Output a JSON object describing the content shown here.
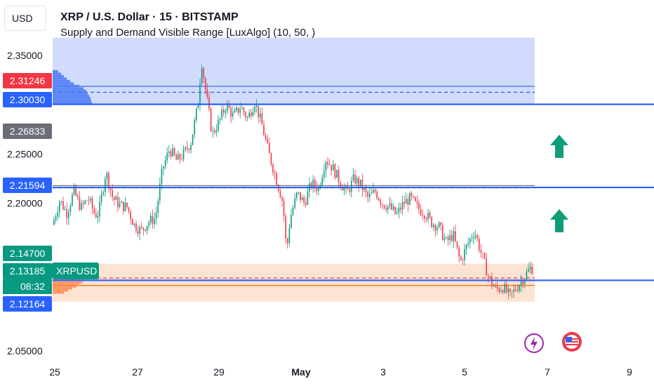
{
  "header": {
    "title": "XRP / U.S. Dollar · 15 · BITSTAMP",
    "subtitle": "Supply and Demand Visible Range [LuxAlgo] (10, 50, )"
  },
  "currency": "USD",
  "colors": {
    "supply_zone": "#c9d6fb",
    "supply_profile": "#4f7df5",
    "demand_zone": "#fde0cd",
    "demand_profile": "#ff8a4f",
    "level_line": "#2962ff",
    "up_candle": "#089981",
    "down_candle": "#f23645",
    "arrow": "#0f9d77",
    "badge_red": "#f23645",
    "badge_blue": "#2962ff",
    "badge_grey": "#6a6d78",
    "badge_teal": "#089981"
  },
  "chart_data": {
    "type": "candlestick",
    "y_range": [
      2.05,
      2.372
    ],
    "price_ticks": [
      "2.35000",
      "2.25000",
      "2.20000",
      "2.05000"
    ],
    "date_ticks": [
      "25",
      "27",
      "29",
      "May",
      "3",
      "5",
      "7",
      "9"
    ],
    "supply_zone": {
      "top": 2.368,
      "bottom": 2.3003,
      "average": 2.3186,
      "poi": 2.3125
    },
    "demand_zone": {
      "top": 2.1385,
      "bottom": 2.1,
      "average": 2.1165,
      "poi": 2.124
    },
    "equilibrium": {
      "top": 2.2178,
      "bottom": 2.2155
    },
    "horizontal_levels": [
      2.3003,
      2.21594,
      2.12164
    ],
    "price_badges": [
      {
        "label": "2.31246",
        "kind": "red"
      },
      {
        "label": "2.30030",
        "kind": "blue"
      },
      {
        "label": "2.26833",
        "kind": "grey"
      },
      {
        "label": "2.21594",
        "kind": "blue"
      },
      {
        "label": "2.14700",
        "kind": "teal"
      },
      {
        "label": "2.13185",
        "kind": "teal"
      },
      {
        "label": "2.12164",
        "kind": "blue"
      }
    ],
    "last_price": {
      "symbol": "XRPUSD",
      "countdown": "08:32"
    },
    "price_path": [
      [
        0,
        2.178
      ],
      [
        0.02,
        2.203
      ],
      [
        0.04,
        2.19
      ],
      [
        0.06,
        2.212
      ],
      [
        0.08,
        2.195
      ],
      [
        0.1,
        2.205
      ],
      [
        0.12,
        2.188
      ],
      [
        0.13,
        2.19
      ],
      [
        0.15,
        2.232
      ],
      [
        0.17,
        2.205
      ],
      [
        0.19,
        2.198
      ],
      [
        0.21,
        2.196
      ],
      [
        0.23,
        2.178
      ],
      [
        0.25,
        2.172
      ],
      [
        0.27,
        2.181
      ],
      [
        0.29,
        2.185
      ],
      [
        0.31,
        2.235
      ],
      [
        0.33,
        2.255
      ],
      [
        0.35,
        2.243
      ],
      [
        0.37,
        2.25
      ],
      [
        0.39,
        2.262
      ],
      [
        0.41,
        2.3
      ],
      [
        0.42,
        2.345
      ],
      [
        0.43,
        2.318
      ],
      [
        0.45,
        2.27
      ],
      [
        0.47,
        2.283
      ],
      [
        0.49,
        2.3
      ],
      [
        0.51,
        2.288
      ],
      [
        0.53,
        2.298
      ],
      [
        0.55,
        2.286
      ],
      [
        0.57,
        2.303
      ],
      [
        0.59,
        2.28
      ],
      [
        0.61,
        2.25
      ],
      [
        0.63,
        2.226
      ],
      [
        0.65,
        2.2
      ],
      [
        0.66,
        2.15
      ],
      [
        0.67,
        2.185
      ],
      [
        0.69,
        2.21
      ],
      [
        0.71,
        2.2
      ],
      [
        0.73,
        2.22
      ],
      [
        0.75,
        2.215
      ],
      [
        0.77,
        2.245
      ],
      [
        0.79,
        2.236
      ],
      [
        0.81,
        2.222
      ],
      [
        0.83,
        2.21
      ],
      [
        0.85,
        2.225
      ],
      [
        0.87,
        2.218
      ],
      [
        0.89,
        2.205
      ],
      [
        0.91,
        2.212
      ],
      [
        0.93,
        2.2
      ],
      [
        0.95,
        2.196
      ],
      [
        0.97,
        2.188
      ],
      [
        0.99,
        2.2
      ],
      [
        1.01,
        2.205
      ],
      [
        1.03,
        2.195
      ],
      [
        1.05,
        2.19
      ],
      [
        1.07,
        2.18
      ],
      [
        1.09,
        2.176
      ],
      [
        1.11,
        2.16
      ],
      [
        1.13,
        2.168
      ],
      [
        1.15,
        2.14
      ],
      [
        1.17,
        2.158
      ],
      [
        1.19,
        2.172
      ],
      [
        1.21,
        2.148
      ],
      [
        1.23,
        2.125
      ],
      [
        1.25,
        2.112
      ],
      [
        1.27,
        2.115
      ],
      [
        1.29,
        2.105
      ],
      [
        1.31,
        2.115
      ],
      [
        1.33,
        2.125
      ],
      [
        1.35,
        2.135
      ],
      [
        1.36,
        2.131
      ]
    ]
  }
}
